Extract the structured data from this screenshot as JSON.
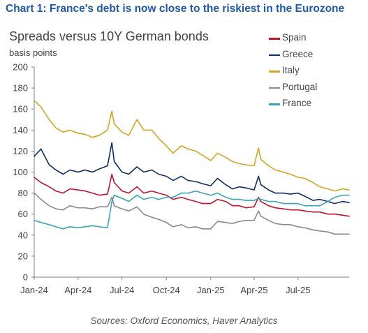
{
  "heading": "Chart 1: France's debt is now close to the riskiest in the Eurozone",
  "source": "Sources: Oxford Economics, Haver Analytics",
  "chart_data": {
    "type": "line",
    "title": "Spreads versus 10Y German bonds",
    "ylabel": "basis points",
    "xlabel": "",
    "ylim": [
      0,
      200
    ],
    "yticks": [
      "0",
      "20",
      "40",
      "60",
      "80",
      "100",
      "120",
      "140",
      "160",
      "180",
      "200"
    ],
    "xlim": [
      "2024-01-01",
      "2025-10-15"
    ],
    "xticks": [
      {
        "label": "Jan-24",
        "date": "2024-01-01"
      },
      {
        "label": "Apr-24",
        "date": "2024-04-01"
      },
      {
        "label": "Jul-24",
        "date": "2024-07-01"
      },
      {
        "label": "Oct-24",
        "date": "2024-10-01"
      },
      {
        "label": "Jan-25",
        "date": "2025-01-01"
      },
      {
        "label": "Apr-25",
        "date": "2025-04-01"
      },
      {
        "label": "Jul-25",
        "date": "2025-07-01"
      }
    ],
    "grid": false,
    "legend": "top-right",
    "dates": [
      "2024-01-01",
      "2024-01-15",
      "2024-02-01",
      "2024-02-15",
      "2024-03-01",
      "2024-03-15",
      "2024-04-01",
      "2024-04-15",
      "2024-05-01",
      "2024-05-15",
      "2024-06-01",
      "2024-06-10",
      "2024-06-15",
      "2024-07-01",
      "2024-07-15",
      "2024-08-01",
      "2024-08-15",
      "2024-09-01",
      "2024-09-15",
      "2024-10-01",
      "2024-10-15",
      "2024-11-01",
      "2024-11-15",
      "2024-12-01",
      "2024-12-15",
      "2025-01-01",
      "2025-01-15",
      "2025-02-01",
      "2025-02-15",
      "2025-03-01",
      "2025-03-15",
      "2025-04-01",
      "2025-04-10",
      "2025-04-15",
      "2025-05-01",
      "2025-05-15",
      "2025-06-01",
      "2025-06-15",
      "2025-07-01",
      "2025-07-15",
      "2025-08-01",
      "2025-08-15",
      "2025-09-01",
      "2025-09-15",
      "2025-10-01",
      "2025-10-15"
    ],
    "series": [
      {
        "name": "Spain",
        "color": "#c0152d",
        "values": [
          95,
          90,
          86,
          82,
          80,
          84,
          83,
          82,
          80,
          78,
          79,
          98,
          90,
          82,
          80,
          86,
          80,
          82,
          80,
          78,
          74,
          76,
          74,
          72,
          70,
          70,
          74,
          72,
          68,
          68,
          66,
          67,
          76,
          72,
          68,
          66,
          65,
          64,
          64,
          63,
          62,
          62,
          60,
          60,
          59,
          58
        ]
      },
      {
        "name": "Greece",
        "color": "#0f2e63",
        "values": [
          115,
          122,
          107,
          102,
          98,
          102,
          100,
          102,
          100,
          103,
          106,
          128,
          110,
          100,
          98,
          105,
          100,
          102,
          98,
          96,
          92,
          96,
          92,
          91,
          89,
          87,
          94,
          88,
          84,
          86,
          85,
          83,
          96,
          88,
          83,
          80,
          80,
          79,
          80,
          77,
          73,
          74,
          72,
          70,
          72,
          71
        ]
      },
      {
        "name": "Italy",
        "color": "#d0a528",
        "values": [
          168,
          162,
          150,
          142,
          138,
          140,
          137,
          136,
          133,
          135,
          140,
          158,
          146,
          138,
          135,
          150,
          140,
          140,
          132,
          125,
          118,
          125,
          122,
          120,
          116,
          111,
          118,
          114,
          110,
          108,
          107,
          106,
          123,
          112,
          106,
          102,
          100,
          98,
          95,
          94,
          90,
          86,
          84,
          82,
          84,
          83
        ]
      },
      {
        "name": "Portugal",
        "color": "#8b8b8b",
        "values": [
          80,
          74,
          68,
          65,
          64,
          68,
          66,
          66,
          65,
          67,
          67,
          76,
          68,
          65,
          63,
          67,
          60,
          57,
          55,
          52,
          48,
          50,
          47,
          48,
          46,
          46,
          53,
          52,
          51,
          53,
          54,
          54,
          63,
          58,
          54,
          51,
          50,
          50,
          48,
          47,
          45,
          44,
          43,
          41,
          41,
          41
        ]
      },
      {
        "name": "France",
        "color": "#3aa3b8",
        "values": [
          54,
          52,
          50,
          48,
          46,
          48,
          47,
          48,
          49,
          48,
          47,
          72,
          78,
          75,
          72,
          78,
          74,
          76,
          74,
          76,
          76,
          80,
          80,
          82,
          80,
          78,
          80,
          76,
          74,
          74,
          73,
          73,
          75,
          74,
          72,
          72,
          70,
          70,
          70,
          68,
          68,
          68,
          72,
          76,
          78,
          78
        ]
      }
    ]
  }
}
